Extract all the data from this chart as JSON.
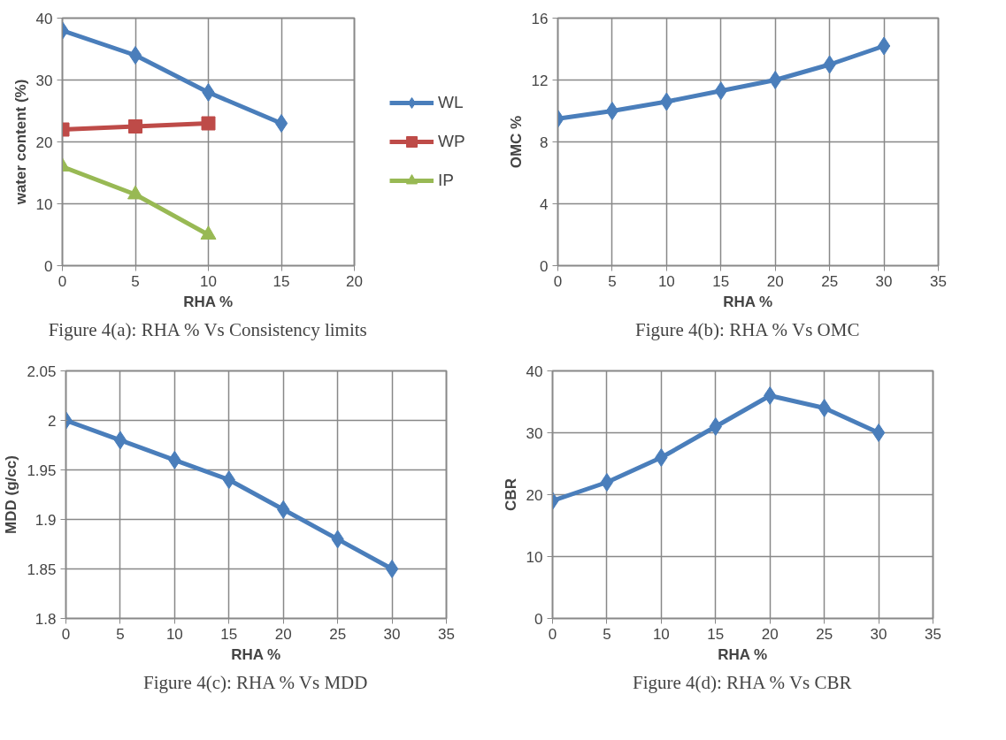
{
  "chart_data": [
    {
      "type": "line",
      "title": "Figure 4(a): RHA % Vs Consistency limits",
      "xlabel": "RHA %",
      "ylabel": "water content (%)",
      "x": [
        0,
        5,
        10,
        15
      ],
      "xlim": [
        0,
        20
      ],
      "xticks": [
        0,
        5,
        10,
        15,
        20
      ],
      "ylim": [
        0,
        40
      ],
      "yticks": [
        0,
        10,
        20,
        30,
        40
      ],
      "grid": true,
      "legend": "right",
      "line_style": "solid",
      "series": [
        {
          "name": "WL",
          "color": "#4a7ebb",
          "marker": "diamond",
          "values": [
            38,
            34,
            28,
            23
          ]
        },
        {
          "name": "WP",
          "color": "#be4b48",
          "marker": "square",
          "values": [
            22,
            22.5,
            23,
            null
          ]
        },
        {
          "name": "IP",
          "color": "#98b954",
          "marker": "triangle",
          "values": [
            16,
            11.5,
            5,
            null
          ]
        }
      ]
    },
    {
      "type": "line",
      "title": "Figure 4(b): RHA % Vs OMC",
      "xlabel": "RHA %",
      "ylabel": "OMC %",
      "x": [
        0,
        5,
        10,
        15,
        20,
        25,
        30
      ],
      "xlim": [
        0,
        35
      ],
      "xticks": [
        0,
        5,
        10,
        15,
        20,
        25,
        30,
        35
      ],
      "ylim": [
        0,
        16
      ],
      "yticks": [
        0,
        4,
        8,
        12,
        16
      ],
      "grid": true,
      "marker": "diamond",
      "line_style": "solid",
      "series": [
        {
          "color": "#4a7ebb",
          "values": [
            9.5,
            10,
            10.6,
            11.3,
            12,
            13,
            14.2
          ]
        }
      ]
    },
    {
      "type": "line",
      "title": "Figure 4(c): RHA % Vs MDD",
      "xlabel": "RHA %",
      "ylabel": "MDD (g/cc)",
      "x": [
        0,
        5,
        10,
        15,
        20,
        25,
        30
      ],
      "xlim": [
        0,
        35
      ],
      "xticks": [
        0,
        5,
        10,
        15,
        20,
        25,
        30,
        35
      ],
      "ylim": [
        1.8,
        2.05
      ],
      "yticks": [
        1.8,
        1.85,
        1.9,
        1.95,
        2,
        2.05
      ],
      "grid": true,
      "marker": "diamond",
      "line_style": "solid",
      "series": [
        {
          "color": "#4a7ebb",
          "values": [
            2.0,
            1.98,
            1.96,
            1.94,
            1.91,
            1.88,
            1.85
          ]
        }
      ]
    },
    {
      "type": "line",
      "title": "Figure 4(d): RHA % Vs CBR",
      "xlabel": "RHA %",
      "ylabel": "CBR",
      "x": [
        0,
        5,
        10,
        15,
        20,
        25,
        30
      ],
      "xlim": [
        0,
        35
      ],
      "xticks": [
        0,
        5,
        10,
        15,
        20,
        25,
        30,
        35
      ],
      "ylim": [
        0,
        40
      ],
      "yticks": [
        0,
        10,
        20,
        30,
        40
      ],
      "grid": true,
      "marker": "diamond",
      "line_style": "solid",
      "series": [
        {
          "color": "#4a7ebb",
          "values": [
            19,
            22,
            26,
            31,
            36,
            34,
            30
          ]
        }
      ]
    }
  ]
}
